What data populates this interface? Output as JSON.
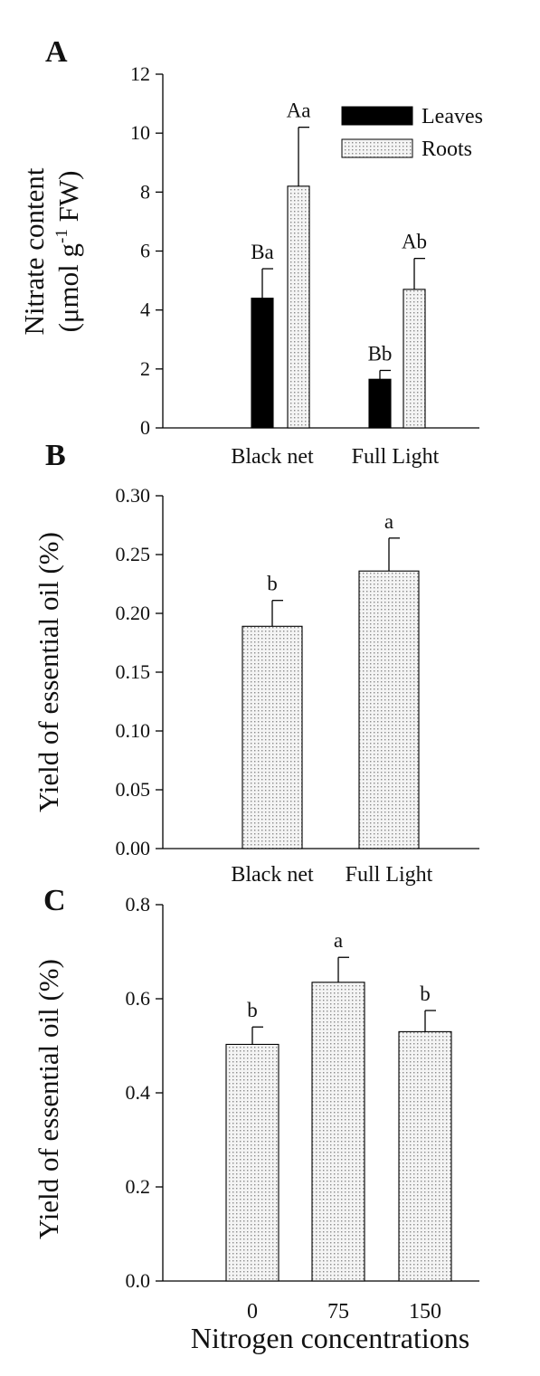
{
  "colors": {
    "leaves": "#000000",
    "roots_fill": "#eeeeee",
    "axis": "#000000"
  },
  "chart_data": [
    {
      "panel": "A",
      "type": "bar",
      "categories": [
        "Black net",
        "Full Light"
      ],
      "series": [
        {
          "name": "Leaves",
          "values": [
            4.4,
            1.65
          ],
          "errors": [
            1.0,
            0.3
          ],
          "letters": [
            "Ba",
            "Bb"
          ]
        },
        {
          "name": "Roots",
          "values": [
            8.2,
            4.7
          ],
          "errors": [
            2.0,
            1.05
          ],
          "letters": [
            "Aa",
            "Ab"
          ]
        }
      ],
      "ylabel_line1": "Nitrate content",
      "ylabel_line2_prefix": "(μmol g",
      "ylabel_superscript": "-1",
      "ylabel_line2_suffix": " FW)",
      "ylim": [
        0,
        12
      ],
      "yticks": [
        "0",
        "2",
        "4",
        "6",
        "8",
        "10",
        "12"
      ],
      "legend": "top-right",
      "grid": false
    },
    {
      "panel": "B",
      "type": "bar",
      "categories": [
        "Black net",
        "Full Light"
      ],
      "series": [
        {
          "values": [
            0.189,
            0.236
          ],
          "errors": [
            0.022,
            0.028
          ],
          "letters": [
            "b",
            "a"
          ]
        }
      ],
      "ylabel": "Yield of essential oil (%)",
      "ylim": [
        0,
        0.3
      ],
      "yticks": [
        "0.00",
        "0.05",
        "0.10",
        "0.15",
        "0.20",
        "0.25",
        "0.30"
      ],
      "grid": false
    },
    {
      "panel": "C",
      "type": "bar",
      "categories": [
        "0",
        "75",
        "150"
      ],
      "series": [
        {
          "values": [
            0.503,
            0.635,
            0.53
          ],
          "errors": [
            0.037,
            0.053,
            0.045
          ],
          "letters": [
            "b",
            "a",
            "b"
          ]
        }
      ],
      "ylabel": "Yield of essential oil (%)",
      "xlabel": "Nitrogen concentrations",
      "ylim": [
        0,
        0.8
      ],
      "yticks": [
        "0.0",
        "0.2",
        "0.4",
        "0.6",
        "0.8"
      ],
      "grid": false
    }
  ]
}
